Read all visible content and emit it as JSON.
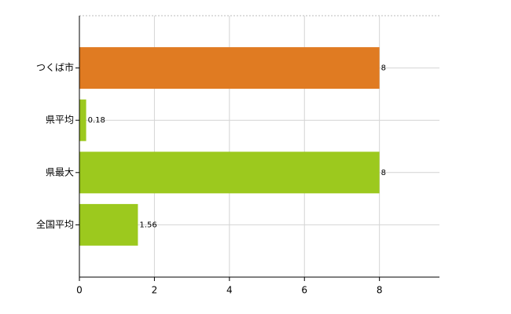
{
  "chart_data": {
    "type": "bar",
    "orientation": "horizontal",
    "categories": [
      "つくば市",
      "県平均",
      "県最大",
      "全国平均"
    ],
    "values": [
      8,
      0.18,
      8,
      1.56
    ],
    "colors": [
      "#e07b22",
      "#9cc91e",
      "#9cc91e",
      "#9cc91e"
    ],
    "xlim": [
      0,
      9.6
    ],
    "xticks": [
      0,
      2,
      4,
      6,
      8
    ],
    "grid": true
  }
}
